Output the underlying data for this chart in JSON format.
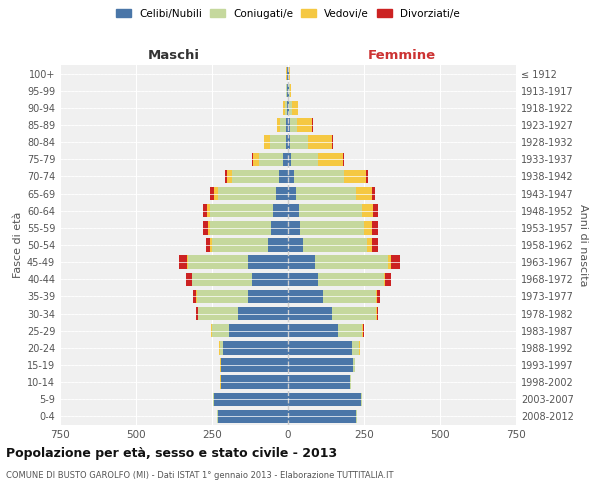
{
  "age_groups": [
    "0-4",
    "5-9",
    "10-14",
    "15-19",
    "20-24",
    "25-29",
    "30-34",
    "35-39",
    "40-44",
    "45-49",
    "50-54",
    "55-59",
    "60-64",
    "65-69",
    "70-74",
    "75-79",
    "80-84",
    "85-89",
    "90-94",
    "95-99",
    "100+"
  ],
  "birth_years": [
    "2008-2012",
    "2003-2007",
    "1998-2002",
    "1993-1997",
    "1988-1992",
    "1983-1987",
    "1978-1982",
    "1973-1977",
    "1968-1972",
    "1963-1967",
    "1958-1962",
    "1953-1957",
    "1948-1952",
    "1943-1947",
    "1938-1942",
    "1933-1937",
    "1928-1932",
    "1923-1927",
    "1918-1922",
    "1913-1917",
    "≤ 1912"
  ],
  "colors": {
    "celibe": "#4a76a8",
    "coniugato": "#c5d89d",
    "vedovo": "#f5c842",
    "divorziato": "#cc2222"
  },
  "males": {
    "celibe": [
      230,
      245,
      220,
      220,
      215,
      195,
      165,
      130,
      120,
      130,
      65,
      55,
      50,
      40,
      30,
      15,
      8,
      5,
      3,
      2,
      2
    ],
    "coniugato": [
      2,
      2,
      2,
      2,
      10,
      55,
      130,
      170,
      195,
      200,
      185,
      200,
      205,
      190,
      155,
      80,
      50,
      20,
      8,
      3,
      2
    ],
    "vedovo": [
      1,
      1,
      1,
      1,
      2,
      2,
      2,
      2,
      2,
      3,
      5,
      8,
      10,
      15,
      15,
      20,
      20,
      10,
      5,
      2,
      1
    ],
    "divorziato": [
      0,
      0,
      0,
      0,
      1,
      2,
      5,
      10,
      20,
      25,
      15,
      15,
      15,
      10,
      8,
      5,
      2,
      0,
      0,
      0,
      0
    ]
  },
  "females": {
    "nubile": [
      225,
      240,
      205,
      215,
      210,
      165,
      145,
      115,
      100,
      90,
      50,
      40,
      35,
      25,
      20,
      10,
      5,
      5,
      4,
      2,
      2
    ],
    "coniugata": [
      2,
      2,
      2,
      5,
      25,
      80,
      145,
      175,
      215,
      240,
      210,
      210,
      210,
      200,
      165,
      90,
      60,
      25,
      10,
      3,
      2
    ],
    "vedova": [
      1,
      1,
      1,
      1,
      2,
      2,
      2,
      3,
      5,
      10,
      15,
      25,
      35,
      50,
      70,
      80,
      80,
      50,
      20,
      5,
      2
    ],
    "divorziata": [
      0,
      0,
      0,
      0,
      1,
      2,
      5,
      10,
      20,
      30,
      20,
      20,
      15,
      10,
      8,
      5,
      2,
      1,
      0,
      0,
      0
    ]
  },
  "xlim": 750,
  "title": "Popolazione per età, sesso e stato civile - 2013",
  "subtitle": "COMUNE DI BUSTO GAROLFO (MI) - Dati ISTAT 1° gennaio 2013 - Elaborazione TUTTITALIA.IT",
  "xlabel_left": "Maschi",
  "xlabel_right": "Femmine",
  "ylabel_left": "Fasce di età",
  "ylabel_right": "Anni di nascita",
  "legend_labels": [
    "Celibi/Nubili",
    "Coniugati/e",
    "Vedovi/e",
    "Divorziati/e"
  ],
  "bg_color": "#f0f0f0"
}
